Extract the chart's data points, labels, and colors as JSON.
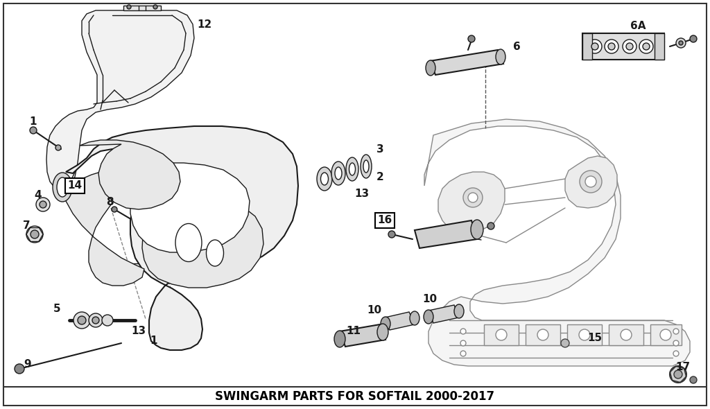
{
  "title": "SWINGARM PARTS FOR SOFTAIL 2000-2017",
  "background_color": "#ffffff",
  "line_color": "#1a1a1a",
  "label_color": "#000000",
  "gray_color": "#888888",
  "light_gray": "#cccccc",
  "figsize": [
    10.24,
    5.9
  ],
  "dpi": 100,
  "title_fontsize": 12,
  "label_fontsize": 11
}
